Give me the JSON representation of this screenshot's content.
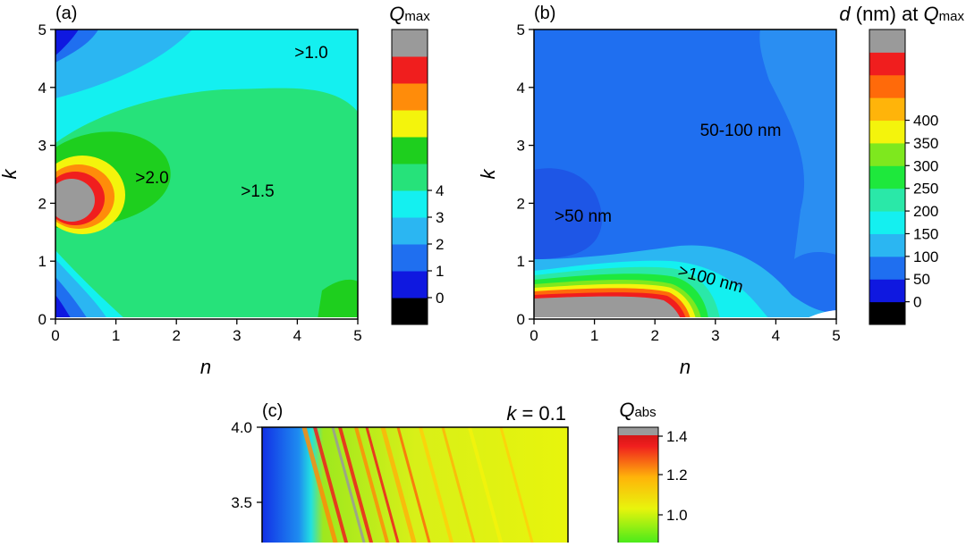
{
  "chart_data": [
    {
      "type": "heatmap",
      "panel_label": "(a)",
      "xlabel": "n",
      "ylabel": "k",
      "xlim": [
        0,
        5
      ],
      "ylim": [
        0,
        5
      ],
      "xticks": [
        "0",
        "1",
        "2",
        "3",
        "4",
        "5"
      ],
      "yticks": [
        "0",
        "1",
        "2",
        "3",
        "4",
        "5"
      ],
      "colorbar": {
        "title_main": "Q",
        "title_sub": "max",
        "ticks": [
          "0",
          "1",
          "2",
          "3",
          "4"
        ],
        "bands": [
          "#000000",
          "#0f18e0",
          "#1f6ff0",
          "#2bb6f2",
          "#14f0f0",
          "#26e27a",
          "#1ecf1e",
          "#f4f40c",
          "#ff8c0a",
          "#f01e1e",
          "#9a9a9a"
        ]
      },
      "annotations": [
        ">1.0",
        ">2.0",
        ">1.5"
      ]
    },
    {
      "type": "heatmap",
      "panel_label": "(b)",
      "xlabel": "n",
      "ylabel": "k",
      "xlim": [
        0,
        5
      ],
      "ylim": [
        0,
        5
      ],
      "xticks": [
        "0",
        "1",
        "2",
        "3",
        "4",
        "5"
      ],
      "yticks": [
        "0",
        "1",
        "2",
        "3",
        "4",
        "5"
      ],
      "colorbar": {
        "title_d": "d",
        "title_rest": " (nm) at ",
        "title_q": "Q",
        "title_sub": "max",
        "ticks": [
          "0",
          "50",
          "100",
          "150",
          "200",
          "250",
          "300",
          "350",
          "400"
        ],
        "bands": [
          "#000000",
          "#0f18e0",
          "#1f6ff0",
          "#2bb6f2",
          "#14f0f0",
          "#2ae8a8",
          "#1ee83c",
          "#7ee81e",
          "#f4f40c",
          "#ffb40a",
          "#ff6a0a",
          "#f01e1e",
          "#9a9a9a"
        ]
      },
      "annotations": [
        "50-100 nm",
        ">50 nm",
        ">100 nm"
      ]
    },
    {
      "type": "heatmap",
      "panel_label": "(c)",
      "title_k": "k",
      "title_rest": " = 0.1",
      "yticks": [
        "4.0",
        "3.5"
      ],
      "colorbar": {
        "title_main": "Q",
        "title_sub": "abs",
        "ticks": [
          "1.4",
          "1.2",
          "1.0"
        ]
      }
    }
  ]
}
